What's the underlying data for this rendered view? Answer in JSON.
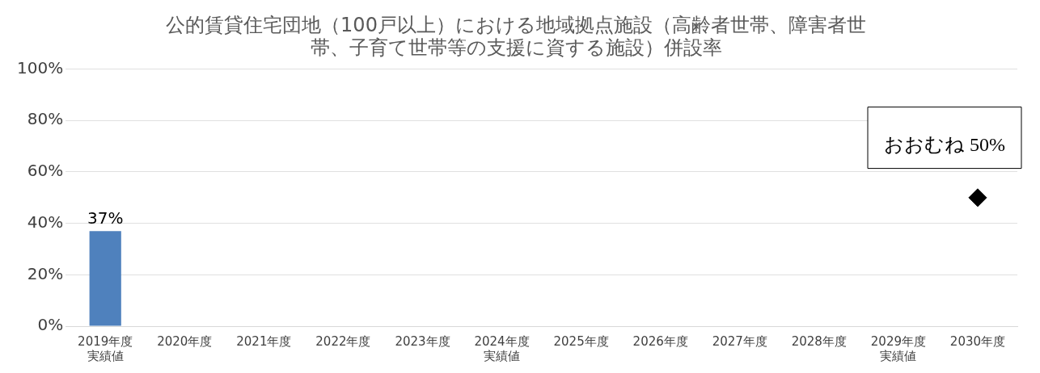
{
  "chart_data": {
    "type": "bar",
    "title": "公的賃貸住宅団地（100戸以上）における地域拠点施設（高齢者世帯、障害者世帯、子育て世帯等の支援に資する施設）併設率",
    "categories": [
      "2019年度実績値",
      "2020年度",
      "2021年度",
      "2022年度",
      "2023年度",
      "2024年度実績値",
      "2025年度",
      "2026年度",
      "2027年度",
      "2028年度",
      "2029年度実績値",
      "2030年度"
    ],
    "series": [
      {
        "color": "#4f81bd",
        "values": [
          37,
          null,
          null,
          null,
          null,
          null,
          null,
          null,
          null,
          null,
          null,
          null
        ],
        "value_labels": [
          "37%",
          null,
          null,
          null,
          null,
          null,
          null,
          null,
          null,
          null,
          null,
          null
        ]
      },
      {
        "type": "scatter",
        "color": "#000000",
        "marker": "diamond",
        "values": [
          null,
          null,
          null,
          null,
          null,
          null,
          null,
          null,
          null,
          null,
          null,
          50
        ]
      }
    ],
    "ylim": [
      0,
      100
    ],
    "yticks": [
      {
        "value": 0,
        "label": "0%"
      },
      {
        "value": 20,
        "label": "20%"
      },
      {
        "value": 40,
        "label": "40%"
      },
      {
        "value": 60,
        "label": "60%"
      },
      {
        "value": 80,
        "label": "80%"
      },
      {
        "value": 100,
        "label": "100%"
      }
    ],
    "grid": "y",
    "legend": false,
    "annotations": [
      "おおむね 50%"
    ]
  }
}
